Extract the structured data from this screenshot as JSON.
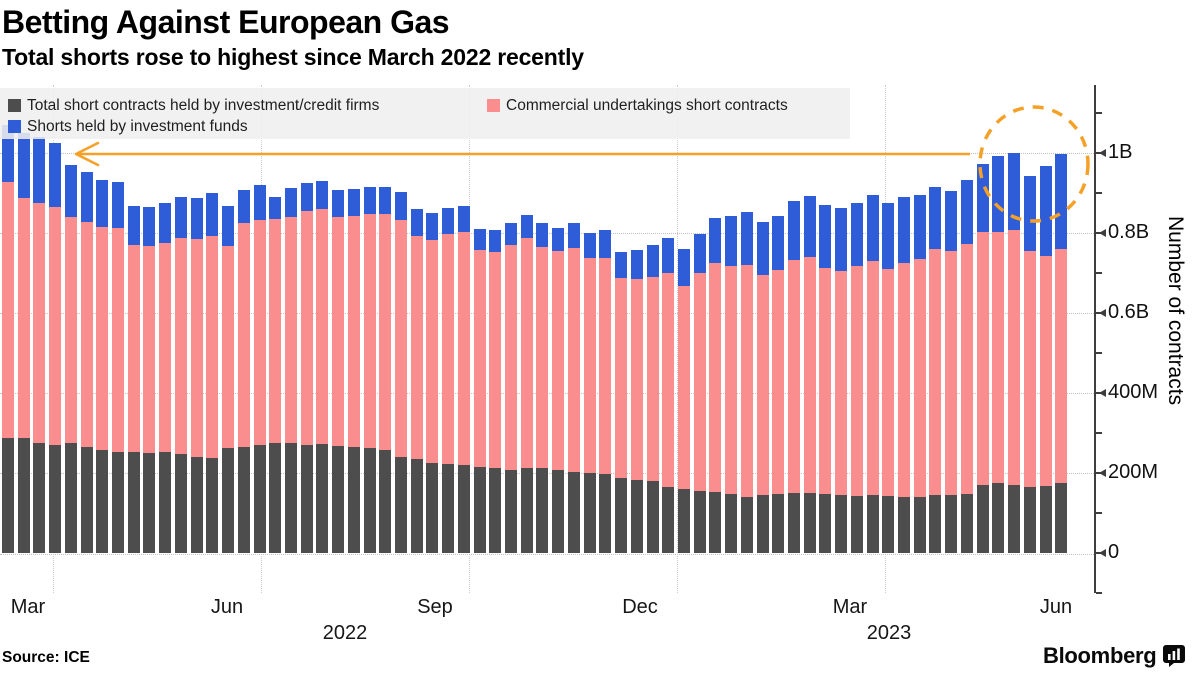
{
  "header": {
    "title": "Betting Against European Gas",
    "subtitle": "Total shorts rose to highest since March 2022 recently"
  },
  "footer": {
    "source": "Source: ICE",
    "brand": "Bloomberg"
  },
  "colors": {
    "firms": "#4d4d4d",
    "commercial": "#fa8d8d",
    "funds": "#2e5dd7",
    "accent_orange": "#f5a128",
    "legend_bg": "#efefef",
    "grid": "#c4c4c4",
    "axis": "#3d3d3d"
  },
  "legend": {
    "items": [
      {
        "key": "firms",
        "label": "Total short contracts held by investment/credit firms"
      },
      {
        "key": "commercial",
        "label": "Commercial undertakings short contracts"
      },
      {
        "key": "funds",
        "label": "Shorts held by investment funds"
      }
    ]
  },
  "chart_data": {
    "type": "bar",
    "stacked": true,
    "frequency": "weekly",
    "period": "Feb 2022 - Jun 2023",
    "n_points": 68,
    "value_unit": "millions of contracts",
    "ylabel": "Number of contracts",
    "ylim_millions": [
      0,
      1170
    ],
    "grid": "dotted, horizontal at majors, vertical at quarters",
    "legend_position": "top-left overlay",
    "y_ticks": [
      {
        "label": "0",
        "value": 0
      },
      {
        "label": "200M",
        "value": 200
      },
      {
        "label": "400M",
        "value": 400
      },
      {
        "label": "0.6B",
        "value": 600
      },
      {
        "label": "0.8B",
        "value": 800
      },
      {
        "label": "1B",
        "value": 1000
      }
    ],
    "y_minor_ticks": [
      100,
      300,
      500,
      700,
      900,
      1100
    ],
    "x_month_labels": [
      "Mar",
      "Jun",
      "Sep",
      "Dec",
      "Mar",
      "Jun"
    ],
    "x_year_labels": [
      "2022",
      "2023"
    ],
    "series": [
      {
        "name": "Total short contracts held by investment/credit firms",
        "key": "firms",
        "values": [
          287,
          287,
          275,
          270,
          275,
          265,
          258,
          253,
          253,
          250,
          253,
          248,
          240,
          238,
          263,
          265,
          270,
          275,
          275,
          270,
          272,
          268,
          266,
          262,
          258,
          241,
          235,
          225,
          222,
          220,
          215,
          212,
          208,
          212,
          213,
          208,
          203,
          200,
          197,
          188,
          183,
          179,
          166,
          160,
          155,
          153,
          147,
          141,
          145,
          148,
          150,
          150,
          148,
          146,
          143,
          145,
          143,
          140,
          140,
          145,
          145,
          148,
          170,
          174,
          170,
          166,
          168,
          174
        ]
      },
      {
        "name": "Commercial undertakings short contracts",
        "key": "commercial",
        "values": [
          641,
          600,
          600,
          595,
          565,
          563,
          557,
          560,
          517,
          518,
          522,
          540,
          545,
          555,
          505,
          560,
          563,
          560,
          565,
          585,
          588,
          573,
          577,
          586,
          589,
          592,
          558,
          558,
          576,
          583,
          543,
          540,
          562,
          576,
          552,
          547,
          560,
          538,
          541,
          499,
          502,
          512,
          533,
          508,
          546,
          571,
          571,
          579,
          550,
          560,
          583,
          589,
          564,
          559,
          575,
          585,
          567,
          585,
          594,
          614,
          611,
          625,
          633,
          629,
          638,
          590,
          575,
          585
        ]
      },
      {
        "name": "Shorts held by investment funds",
        "key": "funds",
        "values": [
          142,
          163,
          165,
          160,
          130,
          125,
          118,
          115,
          98,
          97,
          100,
          102,
          103,
          107,
          100,
          83,
          87,
          55,
          73,
          70,
          70,
          67,
          67,
          68,
          69,
          70,
          67,
          67,
          65,
          65,
          52,
          56,
          55,
          57,
          60,
          58,
          61,
          62,
          70,
          65,
          73,
          79,
          89,
          91,
          97,
          114,
          125,
          132,
          133,
          135,
          147,
          154,
          158,
          157,
          157,
          165,
          166,
          165,
          161,
          156,
          150,
          160,
          169,
          190,
          192,
          187,
          225,
          238
        ]
      }
    ],
    "annotations": {
      "arrow": {
        "note": "orange arrow at ~1B level pointing from recent June 2023 peak back to March 2022",
        "y_value_millions": 1000
      },
      "circle": {
        "note": "dashed orange ellipse highlighting the recent record bars (May-June 2023)"
      }
    }
  }
}
